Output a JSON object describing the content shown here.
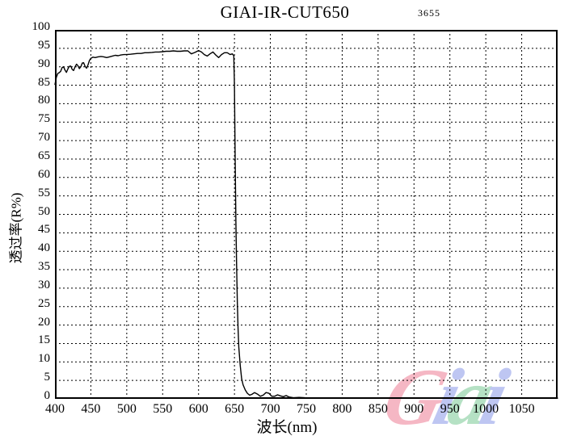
{
  "title": "GIAI-IR-CUT650",
  "annotation": "3655",
  "chart_data": {
    "type": "line",
    "title": "GIAI-IR-CUT650",
    "xlabel": "波长(nm)",
    "ylabel": "透过率(R%)",
    "xlim": [
      400,
      1100
    ],
    "ylim": [
      0,
      100
    ],
    "x_ticks": [
      400,
      450,
      500,
      550,
      600,
      650,
      700,
      750,
      800,
      850,
      900,
      950,
      1000,
      1050
    ],
    "y_ticks": [
      0,
      5,
      10,
      15,
      20,
      25,
      30,
      35,
      40,
      45,
      50,
      55,
      60,
      65,
      70,
      75,
      80,
      85,
      90,
      95,
      100
    ],
    "grid": "dashed both axes",
    "legend": "none",
    "line_color": "#000000",
    "series_name": "transmittance",
    "points": [
      [
        400,
        85.2
      ],
      [
        402,
        87.2
      ],
      [
        404,
        88.2
      ],
      [
        406,
        88.4
      ],
      [
        408,
        88.8
      ],
      [
        410,
        89.8
      ],
      [
        412,
        90.0
      ],
      [
        414,
        89.1
      ],
      [
        416,
        88.5
      ],
      [
        418,
        89.4
      ],
      [
        420,
        90.1
      ],
      [
        422,
        90.2
      ],
      [
        424,
        89.3
      ],
      [
        426,
        89.0
      ],
      [
        428,
        90.0
      ],
      [
        430,
        90.7
      ],
      [
        432,
        90.3
      ],
      [
        434,
        89.5
      ],
      [
        436,
        90.0
      ],
      [
        438,
        91.0
      ],
      [
        440,
        91.1
      ],
      [
        442,
        90.1
      ],
      [
        444,
        89.6
      ],
      [
        446,
        90.5
      ],
      [
        448,
        91.7
      ],
      [
        450,
        92.3
      ],
      [
        453,
        92.6
      ],
      [
        456,
        92.5
      ],
      [
        460,
        92.7
      ],
      [
        464,
        92.8
      ],
      [
        468,
        92.7
      ],
      [
        472,
        92.5
      ],
      [
        476,
        92.7
      ],
      [
        480,
        92.9
      ],
      [
        484,
        93.1
      ],
      [
        488,
        93.0
      ],
      [
        492,
        93.2
      ],
      [
        496,
        93.3
      ],
      [
        500,
        93.3
      ],
      [
        505,
        93.4
      ],
      [
        510,
        93.5
      ],
      [
        515,
        93.6
      ],
      [
        520,
        93.6
      ],
      [
        525,
        93.8
      ],
      [
        530,
        93.8
      ],
      [
        535,
        93.9
      ],
      [
        540,
        94.0
      ],
      [
        545,
        94.0
      ],
      [
        550,
        94.1
      ],
      [
        555,
        94.2
      ],
      [
        560,
        94.2
      ],
      [
        565,
        94.3
      ],
      [
        570,
        94.2
      ],
      [
        575,
        94.2
      ],
      [
        580,
        94.3
      ],
      [
        585,
        94.3
      ],
      [
        590,
        93.5
      ],
      [
        595,
        93.9
      ],
      [
        600,
        94.4
      ],
      [
        604,
        94.0
      ],
      [
        608,
        93.3
      ],
      [
        612,
        92.9
      ],
      [
        616,
        93.5
      ],
      [
        620,
        94.0
      ],
      [
        624,
        93.2
      ],
      [
        628,
        92.5
      ],
      [
        632,
        93.3
      ],
      [
        636,
        93.8
      ],
      [
        640,
        93.8
      ],
      [
        644,
        93.3
      ],
      [
        647,
        93.5
      ],
      [
        649,
        93.0
      ],
      [
        650,
        85
      ],
      [
        651,
        65
      ],
      [
        652,
        48
      ],
      [
        653,
        36
      ],
      [
        654,
        26
      ],
      [
        655,
        19
      ],
      [
        656,
        14
      ],
      [
        658,
        9
      ],
      [
        660,
        5.5
      ],
      [
        662,
        3.8
      ],
      [
        665,
        2.4
      ],
      [
        668,
        1.5
      ],
      [
        671,
        1.0
      ],
      [
        674,
        1.2
      ],
      [
        678,
        1.7
      ],
      [
        682,
        1.3
      ],
      [
        686,
        0.7
      ],
      [
        690,
        1.0
      ],
      [
        694,
        1.7
      ],
      [
        698,
        1.5
      ],
      [
        702,
        0.7
      ],
      [
        706,
        0.7
      ],
      [
        710,
        1.1
      ],
      [
        714,
        0.8
      ],
      [
        718,
        0.6
      ],
      [
        722,
        0.9
      ],
      [
        726,
        0.5
      ],
      [
        732,
        0.3
      ],
      [
        740,
        0.4
      ],
      [
        748,
        0.3
      ],
      [
        760,
        0.25
      ],
      [
        780,
        0.2
      ],
      [
        820,
        0.2
      ],
      [
        860,
        0.2
      ],
      [
        900,
        0.2
      ],
      [
        950,
        0.2
      ],
      [
        1000,
        0.2
      ],
      [
        1050,
        0.2
      ],
      [
        1100,
        0.2
      ]
    ]
  },
  "watermark": {
    "text": "Giai",
    "letters": [
      {
        "char": "G",
        "color": "#f4abba"
      },
      {
        "char": "i",
        "color": "#b3bdf0"
      },
      {
        "char": "a",
        "color": "#a9dcba"
      },
      {
        "char": "i",
        "color": "#b3bdf0"
      }
    ]
  }
}
